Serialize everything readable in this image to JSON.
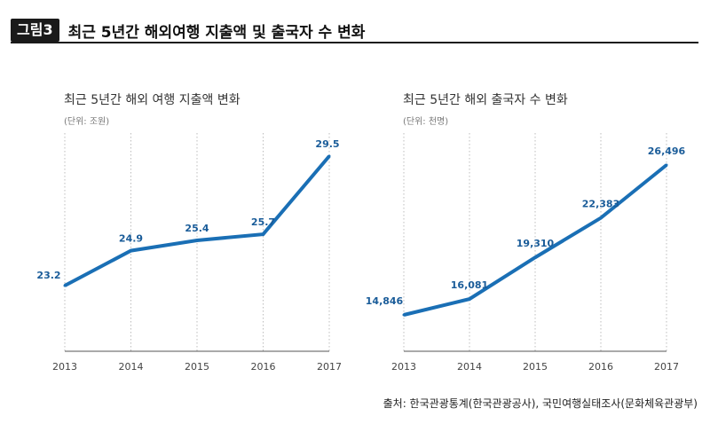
{
  "figure": {
    "badge": "그림3",
    "title": "최근 5년간 해외여행 지출액 및 출국자 수 변화"
  },
  "colors": {
    "line": "#1a6fb5",
    "grid": "#bdbdbd",
    "axis": "#555555",
    "label": "#1a5c99"
  },
  "chart_data": [
    {
      "type": "line",
      "title": "최근 5년간 해외 여행 지출액 변화",
      "unit": "(단위: 조원)",
      "categories": [
        "2013",
        "2014",
        "2015",
        "2016",
        "2017"
      ],
      "values": [
        23.2,
        24.9,
        25.4,
        25.7,
        29.5
      ],
      "labels": [
        "23.2",
        "24.9",
        "25.4",
        "25.7",
        "29.5"
      ],
      "grid": true,
      "grid_style": "dotted-vertical"
    },
    {
      "type": "line",
      "title": "최근 5년간 해외 출국자 수 변화",
      "unit": "(단위: 천명)",
      "categories": [
        "2013",
        "2014",
        "2015",
        "2016",
        "2017"
      ],
      "values": [
        14846,
        16081,
        19310,
        22383,
        26496
      ],
      "labels": [
        "14,846",
        "16,081",
        "19,310",
        "22,383",
        "26,496"
      ],
      "grid": true,
      "grid_style": "dotted-vertical"
    }
  ],
  "source": "출처: 한국관광통계(한국관광공사), 국민여행실태조사(문화체육관광부)"
}
